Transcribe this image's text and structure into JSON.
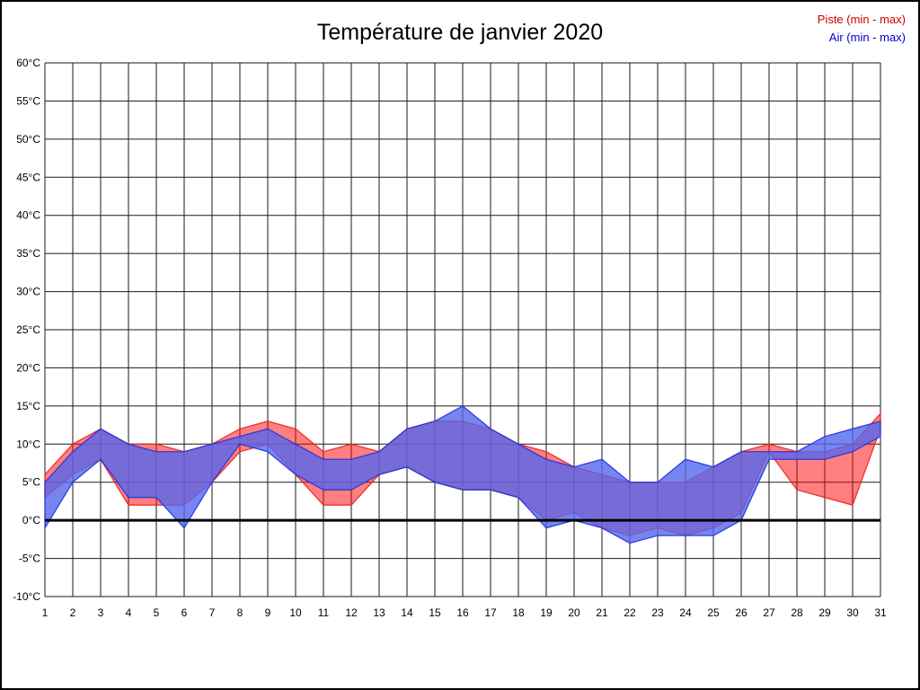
{
  "page": {
    "title": "Température de janvier 2020"
  },
  "legend": {
    "piste_label": "Piste (min - max)",
    "air_label": "Air (min - max)",
    "piste_color": "#cc0000",
    "air_color": "#0000cc"
  },
  "chart_data": {
    "type": "area",
    "title": "Température de janvier 2020",
    "xlabel": "",
    "ylabel": "",
    "x": [
      1,
      2,
      3,
      4,
      5,
      6,
      7,
      8,
      9,
      10,
      11,
      12,
      13,
      14,
      15,
      16,
      17,
      18,
      19,
      20,
      21,
      22,
      23,
      24,
      25,
      26,
      27,
      28,
      29,
      30,
      31
    ],
    "ylim": [
      -10,
      60
    ],
    "ytick_step": 5,
    "ytick_labels": [
      "60°C",
      "55°C",
      "50°C",
      "45°C",
      "40°C",
      "35°C",
      "30°C",
      "25°C",
      "20°C",
      "15°C",
      "10°C",
      "5°C",
      "0°C",
      "-5°C",
      "-10°C"
    ],
    "grid": true,
    "legend_position": "top-right",
    "zero_line": 0,
    "series": [
      {
        "name": "Piste (min - max)",
        "stroke_color": "#ee2222",
        "fill_color": "#ff0000",
        "fill_opacity": 0.5,
        "min": [
          3,
          6,
          8,
          2,
          2,
          2,
          5,
          9,
          10,
          6,
          2,
          2,
          6,
          7,
          5,
          4,
          4,
          3,
          0,
          1,
          -1,
          -2,
          -1,
          -2,
          -1,
          1,
          9,
          4,
          3,
          2,
          12
        ],
        "max": [
          6,
          10,
          12,
          10,
          10,
          9,
          10,
          12,
          13,
          12,
          9,
          10,
          9,
          12,
          13,
          13,
          12,
          10,
          9,
          7,
          6,
          5,
          5,
          5,
          7,
          9,
          10,
          9,
          9,
          10,
          14
        ]
      },
      {
        "name": "Air (min - max)",
        "stroke_color": "#2233dd",
        "fill_color": "#5566ee",
        "fill_opacity": 0.8,
        "min": [
          -1,
          5,
          8,
          3,
          3,
          -1,
          5,
          10,
          9,
          6,
          4,
          4,
          6,
          7,
          5,
          4,
          4,
          3,
          -1,
          0,
          -1,
          -3,
          -2,
          -2,
          -2,
          0,
          8,
          8,
          8,
          9,
          11
        ],
        "max": [
          5,
          9,
          12,
          10,
          9,
          9,
          10,
          11,
          12,
          10,
          8,
          8,
          9,
          12,
          13,
          15,
          12,
          10,
          8,
          7,
          8,
          5,
          5,
          8,
          7,
          9,
          9,
          9,
          11,
          12,
          13
        ]
      }
    ]
  }
}
